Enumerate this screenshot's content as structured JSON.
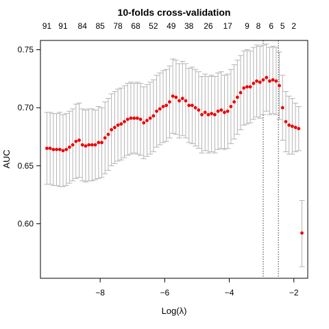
{
  "chart_data": {
    "type": "scatter",
    "title": "10-folds cross-validation",
    "xlabel": "Log(λ)",
    "ylabel": "AUC",
    "xlim": [
      -9.85,
      -1.57
    ],
    "ylim": [
      0.553,
      0.758
    ],
    "x_ticks": [
      -8,
      -6,
      -4,
      -2
    ],
    "y_ticks": [
      0.6,
      0.65,
      0.7,
      0.75
    ],
    "top_axis": {
      "positions": [
        -9.65,
        -9.15,
        -8.55,
        -8.0,
        -7.45,
        -6.9,
        -6.35,
        -5.8,
        -5.25,
        -4.65,
        -4.05,
        -3.45,
        -3.1,
        -2.7,
        -2.35,
        -2.0
      ],
      "labels": [
        "91",
        "91",
        "84",
        "85",
        "78",
        "68",
        "52",
        "49",
        "38",
        "26",
        "17",
        "9",
        "8",
        "6",
        "5",
        "2"
      ]
    },
    "vlines": [
      -2.95,
      -2.48
    ],
    "point_color": "#ee0000",
    "errorbar_color": "#b3b3b3",
    "series": [
      {
        "x": [
          -9.65,
          -9.55,
          -9.45,
          -9.35,
          -9.25,
          -9.15,
          -9.05,
          -8.95,
          -8.85,
          -8.75,
          -8.65,
          -8.55,
          -8.45,
          -8.35,
          -8.25,
          -8.15,
          -8.05,
          -7.95,
          -7.85,
          -7.75,
          -7.65,
          -7.55,
          -7.45,
          -7.35,
          -7.25,
          -7.15,
          -7.05,
          -6.95,
          -6.85,
          -6.75,
          -6.65,
          -6.55,
          -6.45,
          -6.35,
          -6.25,
          -6.15,
          -6.05,
          -5.95,
          -5.85,
          -5.75,
          -5.65,
          -5.55,
          -5.45,
          -5.35,
          -5.25,
          -5.15,
          -5.05,
          -4.95,
          -4.85,
          -4.75,
          -4.65,
          -4.55,
          -4.45,
          -4.35,
          -4.25,
          -4.15,
          -4.05,
          -3.95,
          -3.85,
          -3.75,
          -3.65,
          -3.55,
          -3.45,
          -3.35,
          -3.25,
          -3.15,
          -3.05,
          -2.95,
          -2.85,
          -2.75,
          -2.65,
          -2.55,
          -2.45,
          -2.35,
          -2.25,
          -2.15,
          -2.05,
          -1.95,
          -1.85,
          -1.75
        ],
        "y": [
          0.665,
          0.665,
          0.664,
          0.664,
          0.664,
          0.663,
          0.664,
          0.666,
          0.668,
          0.671,
          0.672,
          0.668,
          0.667,
          0.668,
          0.668,
          0.668,
          0.67,
          0.67,
          0.674,
          0.677,
          0.681,
          0.683,
          0.685,
          0.686,
          0.688,
          0.69,
          0.691,
          0.691,
          0.691,
          0.69,
          0.687,
          0.689,
          0.691,
          0.693,
          0.697,
          0.699,
          0.701,
          0.702,
          0.705,
          0.71,
          0.709,
          0.706,
          0.708,
          0.706,
          0.702,
          0.702,
          0.7,
          0.698,
          0.694,
          0.696,
          0.694,
          0.695,
          0.694,
          0.697,
          0.698,
          0.696,
          0.697,
          0.701,
          0.705,
          0.709,
          0.713,
          0.717,
          0.718,
          0.718,
          0.721,
          0.723,
          0.722,
          0.724,
          0.726,
          0.723,
          0.724,
          0.723,
          0.719,
          0.7,
          0.688,
          0.685,
          0.684,
          0.683,
          0.682,
          0.592
        ],
        "lower": [
          0.634,
          0.634,
          0.633,
          0.633,
          0.632,
          0.632,
          0.633,
          0.635,
          0.637,
          0.639,
          0.64,
          0.637,
          0.636,
          0.637,
          0.637,
          0.638,
          0.639,
          0.64,
          0.643,
          0.646,
          0.65,
          0.652,
          0.654,
          0.655,
          0.657,
          0.659,
          0.66,
          0.661,
          0.66,
          0.659,
          0.656,
          0.658,
          0.66,
          0.662,
          0.666,
          0.668,
          0.67,
          0.671,
          0.674,
          0.678,
          0.677,
          0.674,
          0.676,
          0.674,
          0.67,
          0.669,
          0.667,
          0.665,
          0.661,
          0.663,
          0.661,
          0.662,
          0.661,
          0.664,
          0.665,
          0.664,
          0.665,
          0.669,
          0.673,
          0.677,
          0.681,
          0.685,
          0.686,
          0.687,
          0.69,
          0.692,
          0.691,
          0.694,
          0.697,
          0.694,
          0.695,
          0.694,
          0.69,
          0.672,
          0.662,
          0.66,
          0.66,
          0.662,
          0.663,
          0.563
        ],
        "upper": [
          0.696,
          0.696,
          0.695,
          0.695,
          0.696,
          0.694,
          0.695,
          0.697,
          0.699,
          0.703,
          0.704,
          0.699,
          0.698,
          0.699,
          0.699,
          0.698,
          0.701,
          0.7,
          0.705,
          0.708,
          0.712,
          0.714,
          0.716,
          0.717,
          0.719,
          0.721,
          0.722,
          0.721,
          0.722,
          0.721,
          0.718,
          0.72,
          0.722,
          0.724,
          0.728,
          0.73,
          0.732,
          0.733,
          0.736,
          0.742,
          0.741,
          0.738,
          0.74,
          0.738,
          0.734,
          0.735,
          0.733,
          0.731,
          0.727,
          0.729,
          0.727,
          0.728,
          0.727,
          0.73,
          0.731,
          0.728,
          0.729,
          0.733,
          0.737,
          0.741,
          0.745,
          0.749,
          0.75,
          0.749,
          0.752,
          0.754,
          0.753,
          0.754,
          0.755,
          0.752,
          0.753,
          0.752,
          0.748,
          0.728,
          0.714,
          0.71,
          0.708,
          0.704,
          0.701,
          0.62
        ]
      }
    ]
  }
}
